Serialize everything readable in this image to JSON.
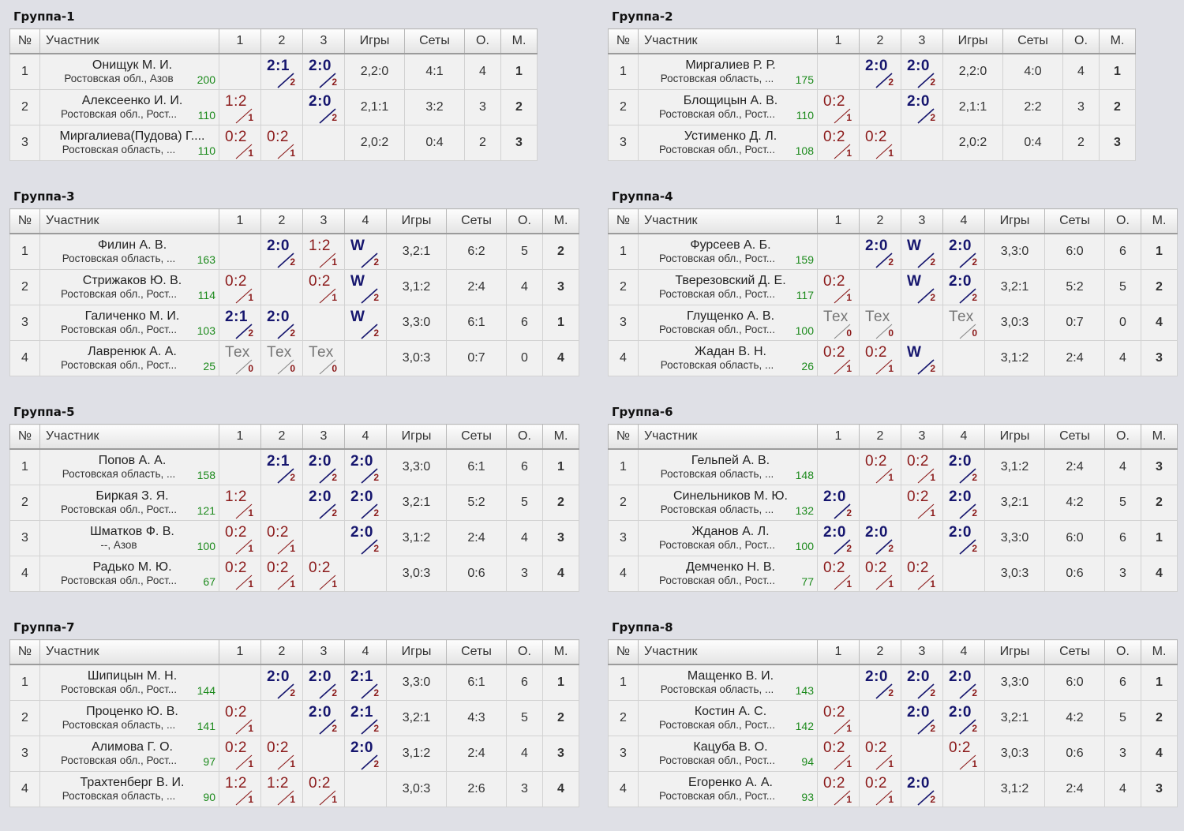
{
  "headers": {
    "num": "№",
    "name": "Участник",
    "games": "Игры",
    "sets": "Сеты",
    "points": "О.",
    "place": "М."
  },
  "groups": [
    {
      "title": "Группа-1",
      "players": [
        {
          "n": "1",
          "name": "Онищук М. И.",
          "region": "Ростовская обл., Азов",
          "rating": "200",
          "res": [
            null,
            [
              "2:1",
              "2",
              "w"
            ],
            [
              "2:0",
              "2",
              "w"
            ]
          ],
          "games": "2,2:0",
          "sets": "4:1",
          "points": "4",
          "place": "1"
        },
        {
          "n": "2",
          "name": "Алексеенко И. И.",
          "region": "Ростовская обл., Рост...",
          "rating": "110",
          "res": [
            [
              "1:2",
              "1",
              "l"
            ],
            null,
            [
              "2:0",
              "2",
              "w"
            ]
          ],
          "games": "2,1:1",
          "sets": "3:2",
          "points": "3",
          "place": "2"
        },
        {
          "n": "3",
          "name": "Миргалиева(Пудова) Г....",
          "region": "Ростовская область, ...",
          "rating": "110",
          "res": [
            [
              "0:2",
              "1",
              "l"
            ],
            [
              "0:2",
              "1",
              "l"
            ],
            null
          ],
          "games": "2,0:2",
          "sets": "0:4",
          "points": "2",
          "place": "3"
        }
      ]
    },
    {
      "title": "Группа-2",
      "players": [
        {
          "n": "1",
          "name": "Миргалиев Р. Р.",
          "region": "Ростовская область, ...",
          "rating": "175",
          "res": [
            null,
            [
              "2:0",
              "2",
              "w"
            ],
            [
              "2:0",
              "2",
              "w"
            ]
          ],
          "games": "2,2:0",
          "sets": "4:0",
          "points": "4",
          "place": "1"
        },
        {
          "n": "2",
          "name": "Блощицын А. В.",
          "region": "Ростовская обл., Рост...",
          "rating": "110",
          "res": [
            [
              "0:2",
              "1",
              "l"
            ],
            null,
            [
              "2:0",
              "2",
              "w"
            ]
          ],
          "games": "2,1:1",
          "sets": "2:2",
          "points": "3",
          "place": "2"
        },
        {
          "n": "3",
          "name": "Устименко Д. Л.",
          "region": "Ростовская обл., Рост...",
          "rating": "108",
          "res": [
            [
              "0:2",
              "1",
              "l"
            ],
            [
              "0:2",
              "1",
              "l"
            ],
            null
          ],
          "games": "2,0:2",
          "sets": "0:4",
          "points": "2",
          "place": "3"
        }
      ]
    },
    {
      "title": "Группа-3",
      "players": [
        {
          "n": "1",
          "name": "Филин А. В.",
          "region": "Ростовская область, ...",
          "rating": "163",
          "res": [
            null,
            [
              "2:0",
              "2",
              "w"
            ],
            [
              "1:2",
              "1",
              "l"
            ],
            [
              "W",
              "2",
              "w"
            ]
          ],
          "games": "3,2:1",
          "sets": "6:2",
          "points": "5",
          "place": "2"
        },
        {
          "n": "2",
          "name": "Стрижаков Ю. В.",
          "region": "Ростовская обл., Рост...",
          "rating": "114",
          "res": [
            [
              "0:2",
              "1",
              "l"
            ],
            null,
            [
              "0:2",
              "1",
              "l"
            ],
            [
              "W",
              "2",
              "w"
            ]
          ],
          "games": "3,1:2",
          "sets": "2:4",
          "points": "4",
          "place": "3"
        },
        {
          "n": "3",
          "name": "Галиченко М. И.",
          "region": "Ростовская обл., Рост...",
          "rating": "103",
          "res": [
            [
              "2:1",
              "2",
              "w"
            ],
            [
              "2:0",
              "2",
              "w"
            ],
            null,
            [
              "W",
              "2",
              "w"
            ]
          ],
          "games": "3,3:0",
          "sets": "6:1",
          "points": "6",
          "place": "1"
        },
        {
          "n": "4",
          "name": "Лавренюк А. А.",
          "region": "Ростовская обл., Рост...",
          "rating": "25",
          "res": [
            [
              "Тех",
              "0",
              "t"
            ],
            [
              "Тех",
              "0",
              "t"
            ],
            [
              "Тех",
              "0",
              "t"
            ],
            null
          ],
          "games": "3,0:3",
          "sets": "0:7",
          "points": "0",
          "place": "4"
        }
      ]
    },
    {
      "title": "Группа-4",
      "players": [
        {
          "n": "1",
          "name": "Фурсеев А. Б.",
          "region": "Ростовская обл., Рост...",
          "rating": "159",
          "res": [
            null,
            [
              "2:0",
              "2",
              "w"
            ],
            [
              "W",
              "2",
              "w"
            ],
            [
              "2:0",
              "2",
              "w"
            ]
          ],
          "games": "3,3:0",
          "sets": "6:0",
          "points": "6",
          "place": "1"
        },
        {
          "n": "2",
          "name": "Тверезовский Д. Е.",
          "region": "Ростовская обл., Рост...",
          "rating": "117",
          "res": [
            [
              "0:2",
              "1",
              "l"
            ],
            null,
            [
              "W",
              "2",
              "w"
            ],
            [
              "2:0",
              "2",
              "w"
            ]
          ],
          "games": "3,2:1",
          "sets": "5:2",
          "points": "5",
          "place": "2"
        },
        {
          "n": "3",
          "name": "Глущенко А. В.",
          "region": "Ростовская обл., Рост...",
          "rating": "100",
          "res": [
            [
              "Тех",
              "0",
              "t"
            ],
            [
              "Тех",
              "0",
              "t"
            ],
            null,
            [
              "Тех",
              "0",
              "t"
            ]
          ],
          "games": "3,0:3",
          "sets": "0:7",
          "points": "0",
          "place": "4"
        },
        {
          "n": "4",
          "name": "Жадан В. Н.",
          "region": "Ростовская область, ...",
          "rating": "26",
          "res": [
            [
              "0:2",
              "1",
              "l"
            ],
            [
              "0:2",
              "1",
              "l"
            ],
            [
              "W",
              "2",
              "w"
            ],
            null
          ],
          "games": "3,1:2",
          "sets": "2:4",
          "points": "4",
          "place": "3"
        }
      ]
    },
    {
      "title": "Группа-5",
      "players": [
        {
          "n": "1",
          "name": "Попов А. А.",
          "region": "Ростовская область, ...",
          "rating": "158",
          "res": [
            null,
            [
              "2:1",
              "2",
              "w"
            ],
            [
              "2:0",
              "2",
              "w"
            ],
            [
              "2:0",
              "2",
              "w"
            ]
          ],
          "games": "3,3:0",
          "sets": "6:1",
          "points": "6",
          "place": "1"
        },
        {
          "n": "2",
          "name": "Биркая З. Я.",
          "region": "Ростовская обл., Рост...",
          "rating": "121",
          "res": [
            [
              "1:2",
              "1",
              "l"
            ],
            null,
            [
              "2:0",
              "2",
              "w"
            ],
            [
              "2:0",
              "2",
              "w"
            ]
          ],
          "games": "3,2:1",
          "sets": "5:2",
          "points": "5",
          "place": "2"
        },
        {
          "n": "3",
          "name": "Шматков Ф. В.",
          "region": "--, Азов",
          "rating": "100",
          "res": [
            [
              "0:2",
              "1",
              "l"
            ],
            [
              "0:2",
              "1",
              "l"
            ],
            null,
            [
              "2:0",
              "2",
              "w"
            ]
          ],
          "games": "3,1:2",
          "sets": "2:4",
          "points": "4",
          "place": "3"
        },
        {
          "n": "4",
          "name": "Радько М. Ю.",
          "region": "Ростовская обл., Рост...",
          "rating": "67",
          "res": [
            [
              "0:2",
              "1",
              "l"
            ],
            [
              "0:2",
              "1",
              "l"
            ],
            [
              "0:2",
              "1",
              "l"
            ],
            null
          ],
          "games": "3,0:3",
          "sets": "0:6",
          "points": "3",
          "place": "4"
        }
      ]
    },
    {
      "title": "Группа-6",
      "players": [
        {
          "n": "1",
          "name": "Гельпей А. В.",
          "region": "Ростовская область, ...",
          "rating": "148",
          "res": [
            null,
            [
              "0:2",
              "1",
              "l"
            ],
            [
              "0:2",
              "1",
              "l"
            ],
            [
              "2:0",
              "2",
              "w"
            ]
          ],
          "games": "3,1:2",
          "sets": "2:4",
          "points": "4",
          "place": "3"
        },
        {
          "n": "2",
          "name": "Синельников М. Ю.",
          "region": "Ростовская область, ...",
          "rating": "132",
          "res": [
            [
              "2:0",
              "2",
              "w"
            ],
            null,
            [
              "0:2",
              "1",
              "l"
            ],
            [
              "2:0",
              "2",
              "w"
            ]
          ],
          "games": "3,2:1",
          "sets": "4:2",
          "points": "5",
          "place": "2"
        },
        {
          "n": "3",
          "name": "Жданов А. Л.",
          "region": "Ростовская обл., Рост...",
          "rating": "100",
          "res": [
            [
              "2:0",
              "2",
              "w"
            ],
            [
              "2:0",
              "2",
              "w"
            ],
            null,
            [
              "2:0",
              "2",
              "w"
            ]
          ],
          "games": "3,3:0",
          "sets": "6:0",
          "points": "6",
          "place": "1"
        },
        {
          "n": "4",
          "name": "Демченко Н. В.",
          "region": "Ростовская обл., Рост...",
          "rating": "77",
          "res": [
            [
              "0:2",
              "1",
              "l"
            ],
            [
              "0:2",
              "1",
              "l"
            ],
            [
              "0:2",
              "1",
              "l"
            ],
            null
          ],
          "games": "3,0:3",
          "sets": "0:6",
          "points": "3",
          "place": "4"
        }
      ]
    },
    {
      "title": "Группа-7",
      "players": [
        {
          "n": "1",
          "name": "Шипицын М. Н.",
          "region": "Ростовская обл., Рост...",
          "rating": "144",
          "res": [
            null,
            [
              "2:0",
              "2",
              "w"
            ],
            [
              "2:0",
              "2",
              "w"
            ],
            [
              "2:1",
              "2",
              "w"
            ]
          ],
          "games": "3,3:0",
          "sets": "6:1",
          "points": "6",
          "place": "1"
        },
        {
          "n": "2",
          "name": "Проценко Ю. В.",
          "region": "Ростовская область, ...",
          "rating": "141",
          "res": [
            [
              "0:2",
              "1",
              "l"
            ],
            null,
            [
              "2:0",
              "2",
              "w"
            ],
            [
              "2:1",
              "2",
              "w"
            ]
          ],
          "games": "3,2:1",
          "sets": "4:3",
          "points": "5",
          "place": "2"
        },
        {
          "n": "3",
          "name": "Алимова Г. О.",
          "region": "Ростовская обл., Рост...",
          "rating": "97",
          "res": [
            [
              "0:2",
              "1",
              "l"
            ],
            [
              "0:2",
              "1",
              "l"
            ],
            null,
            [
              "2:0",
              "2",
              "w"
            ]
          ],
          "games": "3,1:2",
          "sets": "2:4",
          "points": "4",
          "place": "3"
        },
        {
          "n": "4",
          "name": "Трахтенберг В. И.",
          "region": "Ростовская область, ...",
          "rating": "90",
          "res": [
            [
              "1:2",
              "1",
              "l"
            ],
            [
              "1:2",
              "1",
              "l"
            ],
            [
              "0:2",
              "1",
              "l"
            ],
            null
          ],
          "games": "3,0:3",
          "sets": "2:6",
          "points": "3",
          "place": "4"
        }
      ]
    },
    {
      "title": "Группа-8",
      "players": [
        {
          "n": "1",
          "name": "Мащенко В. И.",
          "region": "Ростовская область, ...",
          "rating": "143",
          "res": [
            null,
            [
              "2:0",
              "2",
              "w"
            ],
            [
              "2:0",
              "2",
              "w"
            ],
            [
              "2:0",
              "2",
              "w"
            ]
          ],
          "games": "3,3:0",
          "sets": "6:0",
          "points": "6",
          "place": "1"
        },
        {
          "n": "2",
          "name": "Костин А. С.",
          "region": "Ростовская обл., Рост...",
          "rating": "142",
          "res": [
            [
              "0:2",
              "1",
              "l"
            ],
            null,
            [
              "2:0",
              "2",
              "w"
            ],
            [
              "2:0",
              "2",
              "w"
            ]
          ],
          "games": "3,2:1",
          "sets": "4:2",
          "points": "5",
          "place": "2"
        },
        {
          "n": "3",
          "name": "Кацуба В. О.",
          "region": "Ростовская обл., Рост...",
          "rating": "94",
          "res": [
            [
              "0:2",
              "1",
              "l"
            ],
            [
              "0:2",
              "1",
              "l"
            ],
            null,
            [
              "0:2",
              "1",
              "l"
            ]
          ],
          "games": "3,0:3",
          "sets": "0:6",
          "points": "3",
          "place": "4"
        },
        {
          "n": "4",
          "name": "Егоренко А. А.",
          "region": "Ростовская обл., Рост...",
          "rating": "93",
          "res": [
            [
              "0:2",
              "1",
              "l"
            ],
            [
              "0:2",
              "1",
              "l"
            ],
            [
              "2:0",
              "2",
              "w"
            ],
            null
          ],
          "games": "3,1:2",
          "sets": "2:4",
          "points": "4",
          "place": "3"
        }
      ]
    }
  ]
}
